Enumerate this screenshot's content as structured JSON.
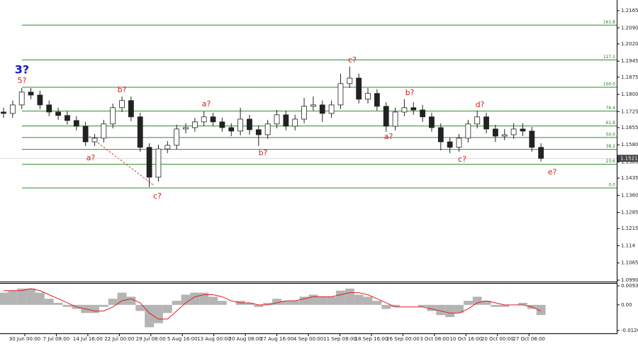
{
  "chart_data": [
    {
      "type": "candlestick",
      "ylim": [
        1.099,
        1.2165
      ],
      "yticks": [
        1.2165,
        {
          "value": 1.209,
          "label": "1.2090"
        },
        {
          "value": 1.202,
          "label": "1.2020"
        },
        1.1945,
        1.1875,
        {
          "value": 1.18,
          "label": "1.1800"
        },
        1.1725,
        1.1655,
        {
          "value": 1.158,
          "label": "1.1580"
        },
        1.1505,
        1.1435,
        {
          "value": 1.136,
          "label": "1.1360"
        },
        1.1285,
        1.1215,
        1.114,
        1.1065,
        {
          "value": 1.099,
          "label": "1.0990"
        }
      ],
      "current_price": 1.1521,
      "x_labels": [
        "30 Jun 00:00",
        "7 Jul 08:00",
        "14 Jul 16:00",
        "22 Jul 00:00",
        "29 Jul 08:00",
        "5 Aug 16:00",
        "13 Aug 00:00",
        "20 Aug 08:00",
        "27 Aug 16:00",
        "4 Sep 00:00",
        "11 Sep 08:00",
        "18 Sep 16:00",
        "26 Sep 00:00",
        "3 Oct 08:00",
        "10 Oct 16:00",
        "20 Oct 00:00",
        "27 Oct 08:00"
      ],
      "fib_levels": [
        {
          "label": "161.8",
          "price": 1.2102
        },
        {
          "label": "127.2",
          "price": 1.195
        },
        {
          "label": "100.0",
          "price": 1.1831
        },
        {
          "label": "76.4",
          "price": 1.1727
        },
        {
          "label": "61.8",
          "price": 1.1662
        },
        {
          "label": "50.0",
          "price": 1.1612
        },
        {
          "label": "38.2",
          "price": 1.156
        },
        {
          "label": "23.6",
          "price": 1.1495
        },
        {
          "label": "0.0",
          "price": 1.1392
        }
      ],
      "fib_color": "#2e8b2e",
      "wave_labels": [
        {
          "text": "3?",
          "color": "#1818c8"
        },
        {
          "text": "5?",
          "color": "#d42020"
        },
        {
          "text": "a?",
          "color": "#d42020"
        },
        {
          "text": "b?",
          "color": "#d42020"
        },
        {
          "text": "c?",
          "color": "#d42020"
        },
        {
          "text": "a?",
          "color": "#d42020"
        },
        {
          "text": "b?",
          "color": "#d42020"
        },
        {
          "text": "c?",
          "color": "#d42020"
        },
        {
          "text": "a?",
          "color": "#d42020"
        },
        {
          "text": "b?",
          "color": "#d42020"
        },
        {
          "text": "c?",
          "color": "#d42020"
        },
        {
          "text": "d?",
          "color": "#d42020"
        },
        {
          "text": "e?",
          "color": "#d42020"
        }
      ],
      "candles": [
        [
          1.1723,
          1.1742,
          1.1698,
          1.1717
        ],
        [
          1.1717,
          1.1773,
          1.1698,
          1.1754
        ],
        [
          1.1754,
          1.1828,
          1.1736,
          1.181
        ],
        [
          1.181,
          1.1828,
          1.1779,
          1.1797
        ],
        [
          1.1797,
          1.1816,
          1.1736,
          1.1754
        ],
        [
          1.1754,
          1.1773,
          1.1705,
          1.1723
        ],
        [
          1.1723,
          1.1742,
          1.1689,
          1.1708
        ],
        [
          1.1708,
          1.1726,
          1.1668,
          1.1686
        ],
        [
          1.1686,
          1.1705,
          1.1643,
          1.1661
        ],
        [
          1.1661,
          1.168,
          1.1575,
          1.1593
        ],
        [
          1.1593,
          1.1627,
          1.1575,
          1.1609
        ],
        [
          1.1609,
          1.1689,
          1.159,
          1.1671
        ],
        [
          1.1671,
          1.176,
          1.1652,
          1.1742
        ],
        [
          1.1742,
          1.1791,
          1.1723,
          1.1773
        ],
        [
          1.1773,
          1.1791,
          1.1683,
          1.1702
        ],
        [
          1.1702,
          1.172,
          1.155,
          1.1569
        ],
        [
          1.1569,
          1.1587,
          1.1396,
          1.1439
        ],
        [
          1.1439,
          1.1581,
          1.142,
          1.1562
        ],
        [
          1.1562,
          1.1596,
          1.1544,
          1.1578
        ],
        [
          1.1578,
          1.1668,
          1.1559,
          1.1649
        ],
        [
          1.1649,
          1.1674,
          1.163,
          1.1655
        ],
        [
          1.1655,
          1.1698,
          1.1637,
          1.168
        ],
        [
          1.168,
          1.1726,
          1.1661,
          1.1702
        ],
        [
          1.1702,
          1.172,
          1.1661,
          1.168
        ],
        [
          1.168,
          1.1698,
          1.1637,
          1.1655
        ],
        [
          1.1655,
          1.1674,
          1.1618,
          1.164
        ],
        [
          1.164,
          1.1742,
          1.1621,
          1.1692
        ],
        [
          1.1692,
          1.1711,
          1.1624,
          1.1646
        ],
        [
          1.1646,
          1.1665,
          1.1575,
          1.1624
        ],
        [
          1.1624,
          1.1689,
          1.1606,
          1.1671
        ],
        [
          1.1671,
          1.1732,
          1.1652,
          1.1711
        ],
        [
          1.1711,
          1.1729,
          1.1643,
          1.1661
        ],
        [
          1.1661,
          1.1711,
          1.1643,
          1.1692
        ],
        [
          1.1692,
          1.1785,
          1.1674,
          1.1748
        ],
        [
          1.1748,
          1.1791,
          1.1729,
          1.1754
        ],
        [
          1.1754,
          1.1773,
          1.168,
          1.1717
        ],
        [
          1.1717,
          1.1773,
          1.1698,
          1.1754
        ],
        [
          1.1754,
          1.189,
          1.1736,
          1.1847
        ],
        [
          1.1847,
          1.1921,
          1.1828,
          1.1871
        ],
        [
          1.1871,
          1.189,
          1.176,
          1.1779
        ],
        [
          1.1779,
          1.1828,
          1.176,
          1.1804
        ],
        [
          1.1804,
          1.1822,
          1.1729,
          1.1748
        ],
        [
          1.1748,
          1.1766,
          1.1637,
          1.1661
        ],
        [
          1.1661,
          1.1742,
          1.1643,
          1.1723
        ],
        [
          1.1723,
          1.1779,
          1.1705,
          1.1742
        ],
        [
          1.1742,
          1.1766,
          1.1711,
          1.1732
        ],
        [
          1.1732,
          1.1754,
          1.168,
          1.1702
        ],
        [
          1.1702,
          1.172,
          1.1637,
          1.1655
        ],
        [
          1.1655,
          1.1674,
          1.1556,
          1.1593
        ],
        [
          1.1593,
          1.1612,
          1.1544,
          1.1569
        ],
        [
          1.1569,
          1.1627,
          1.155,
          1.1609
        ],
        [
          1.1609,
          1.1689,
          1.159,
          1.1671
        ],
        [
          1.1671,
          1.1729,
          1.1652,
          1.1702
        ],
        [
          1.1702,
          1.172,
          1.163,
          1.1649
        ],
        [
          1.1649,
          1.1668,
          1.1593,
          1.1618
        ],
        [
          1.1618,
          1.1649,
          1.16,
          1.1624
        ],
        [
          1.1624,
          1.1674,
          1.1606,
          1.1649
        ],
        [
          1.1649,
          1.1674,
          1.1618,
          1.164
        ],
        [
          1.164,
          1.1658,
          1.155,
          1.1569
        ],
        [
          1.1569,
          1.1587,
          1.1507,
          1.1521
        ]
      ]
    },
    {
      "type": "macd",
      "ylim": [
        -0.0126,
        0.00935
      ],
      "yticks": [
        0.00935,
        {
          "value": 0,
          "label": "0.00"
        },
        -0.0126
      ],
      "color": "#b4b4b4",
      "line_color": "#e02020",
      "values": [
        0.006,
        0.007,
        0.008,
        0.008,
        0.006,
        0.003,
        0.001,
        -0.001,
        -0.002,
        -0.004,
        -0.004,
        -0.001,
        0.003,
        0.006,
        0.004,
        -0.003,
        -0.011,
        -0.009,
        -0.004,
        0.002,
        0.005,
        0.006,
        0.006,
        0.004,
        0.002,
        0.0,
        0.002,
        0.001,
        -0.001,
        0.001,
        0.003,
        0.002,
        0.002,
        0.004,
        0.005,
        0.004,
        0.004,
        0.007,
        0.008,
        0.005,
        0.004,
        0.002,
        -0.002,
        -0.001,
        0.0,
        0.0,
        -0.001,
        -0.003,
        -0.005,
        -0.006,
        -0.004,
        0.002,
        0.004,
        0.002,
        -0.001,
        -0.001,
        0.0,
        0.001,
        -0.002,
        -0.005
      ],
      "line_values": [
        0.007,
        0.007,
        0.007,
        0.008,
        0.007,
        0.005,
        0.003,
        0.001,
        -0.001,
        -0.002,
        -0.003,
        -0.003,
        -0.001,
        0.002,
        0.003,
        0.001,
        -0.004,
        -0.007,
        -0.007,
        -0.003,
        0.001,
        0.004,
        0.005,
        0.005,
        0.004,
        0.002,
        0.001,
        0.001,
        0.0,
        0.0,
        0.001,
        0.002,
        0.002,
        0.003,
        0.004,
        0.004,
        0.004,
        0.005,
        0.006,
        0.006,
        0.005,
        0.003,
        0.001,
        -0.001,
        -0.001,
        -0.001,
        -0.001,
        -0.002,
        -0.003,
        -0.004,
        -0.004,
        -0.002,
        0.001,
        0.002,
        0.001,
        0.0,
        0.0,
        0.0,
        -0.001,
        -0.003
      ]
    }
  ]
}
